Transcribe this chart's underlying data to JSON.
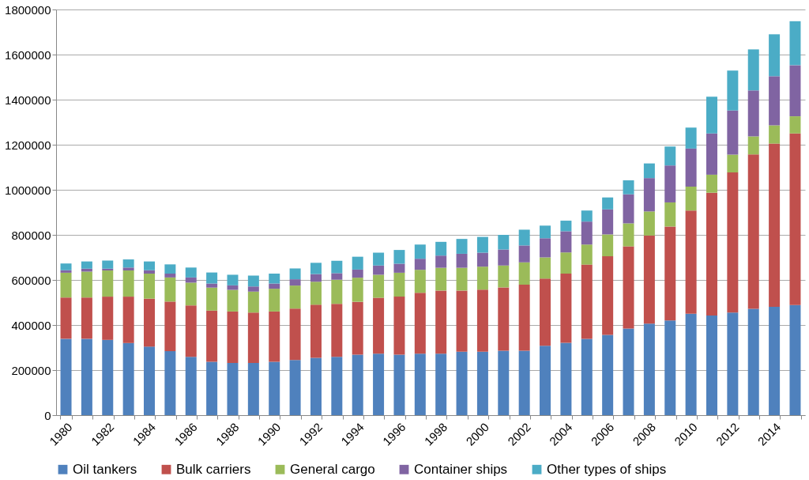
{
  "chart_data": {
    "type": "bar",
    "stacked": true,
    "categories": [
      "1980",
      null,
      "1982",
      null,
      "1984",
      null,
      "1986",
      null,
      "1988",
      null,
      "1990",
      null,
      "1992",
      null,
      "1994",
      null,
      "1996",
      null,
      "1998",
      null,
      "2000",
      null,
      "2002",
      null,
      "2004",
      null,
      "2006",
      null,
      "2008",
      null,
      "2010",
      null,
      "2012",
      null,
      "2014",
      null
    ],
    "series": [
      {
        "name": "Oil tankers",
        "color": "#4f81bd",
        "values": [
          339000,
          339000,
          334000,
          320000,
          304000,
          284000,
          259000,
          237000,
          232000,
          232000,
          237000,
          245000,
          254000,
          259000,
          268000,
          273000,
          268000,
          273000,
          273000,
          282000,
          282000,
          286000,
          286000,
          308000,
          321000,
          339000,
          356000,
          384000,
          406000,
          420000,
          450000,
          442000,
          455000,
          472000,
          481000,
          489000
        ]
      },
      {
        "name": "Bulk carriers",
        "color": "#c0504d",
        "values": [
          183000,
          183000,
          192000,
          206000,
          213000,
          220000,
          228000,
          227000,
          228000,
          223000,
          223000,
          228000,
          236000,
          235000,
          235000,
          248000,
          258000,
          270000,
          280000,
          271000,
          275000,
          281000,
          293000,
          298000,
          307000,
          329000,
          349000,
          365000,
          391000,
          417000,
          458000,
          545000,
          622000,
          685000,
          724000,
          761000
        ]
      },
      {
        "name": "General cargo",
        "color": "#9bbb59",
        "values": [
          110000,
          115000,
          116000,
          116000,
          111000,
          107000,
          101000,
          102000,
          96000,
          93000,
          101000,
          102000,
          102000,
          107000,
          107000,
          102000,
          106000,
          102000,
          101000,
          101000,
          102000,
          97000,
          99000,
          94000,
          94000,
          89000,
          97000,
          102000,
          107000,
          107000,
          106000,
          80000,
          79000,
          80000,
          81000,
          76000
        ]
      },
      {
        "name": "Container ships",
        "color": "#8064a2",
        "values": [
          11000,
          13000,
          8000,
          13000,
          15000,
          17000,
          23000,
          18000,
          20000,
          23000,
          23000,
          28000,
          34000,
          29000,
          36000,
          41000,
          40000,
          49000,
          54000,
          62000,
          62000,
          71000,
          75000,
          85000,
          94000,
          102000,
          111000,
          129000,
          148000,
          164000,
          169000,
          183000,
          196000,
          204000,
          218000,
          227000
        ]
      },
      {
        "name": "Other types of ships",
        "color": "#4bacc6",
        "values": [
          30000,
          32000,
          36000,
          36000,
          39000,
          41000,
          44000,
          49000,
          47000,
          48000,
          44000,
          48000,
          50000,
          55000,
          57000,
          57000,
          61000,
          63000,
          61000,
          66000,
          70000,
          65000,
          70000,
          56000,
          47000,
          49000,
          53000,
          62000,
          65000,
          84000,
          93000,
          163000,
          177000,
          182000,
          186000,
          195000
        ]
      }
    ],
    "ylim": [
      0,
      1800000
    ],
    "yticks": [
      0,
      200000,
      400000,
      600000,
      800000,
      1000000,
      1200000,
      1400000,
      1600000,
      1800000
    ],
    "grid": "y",
    "legend": "bottom"
  }
}
